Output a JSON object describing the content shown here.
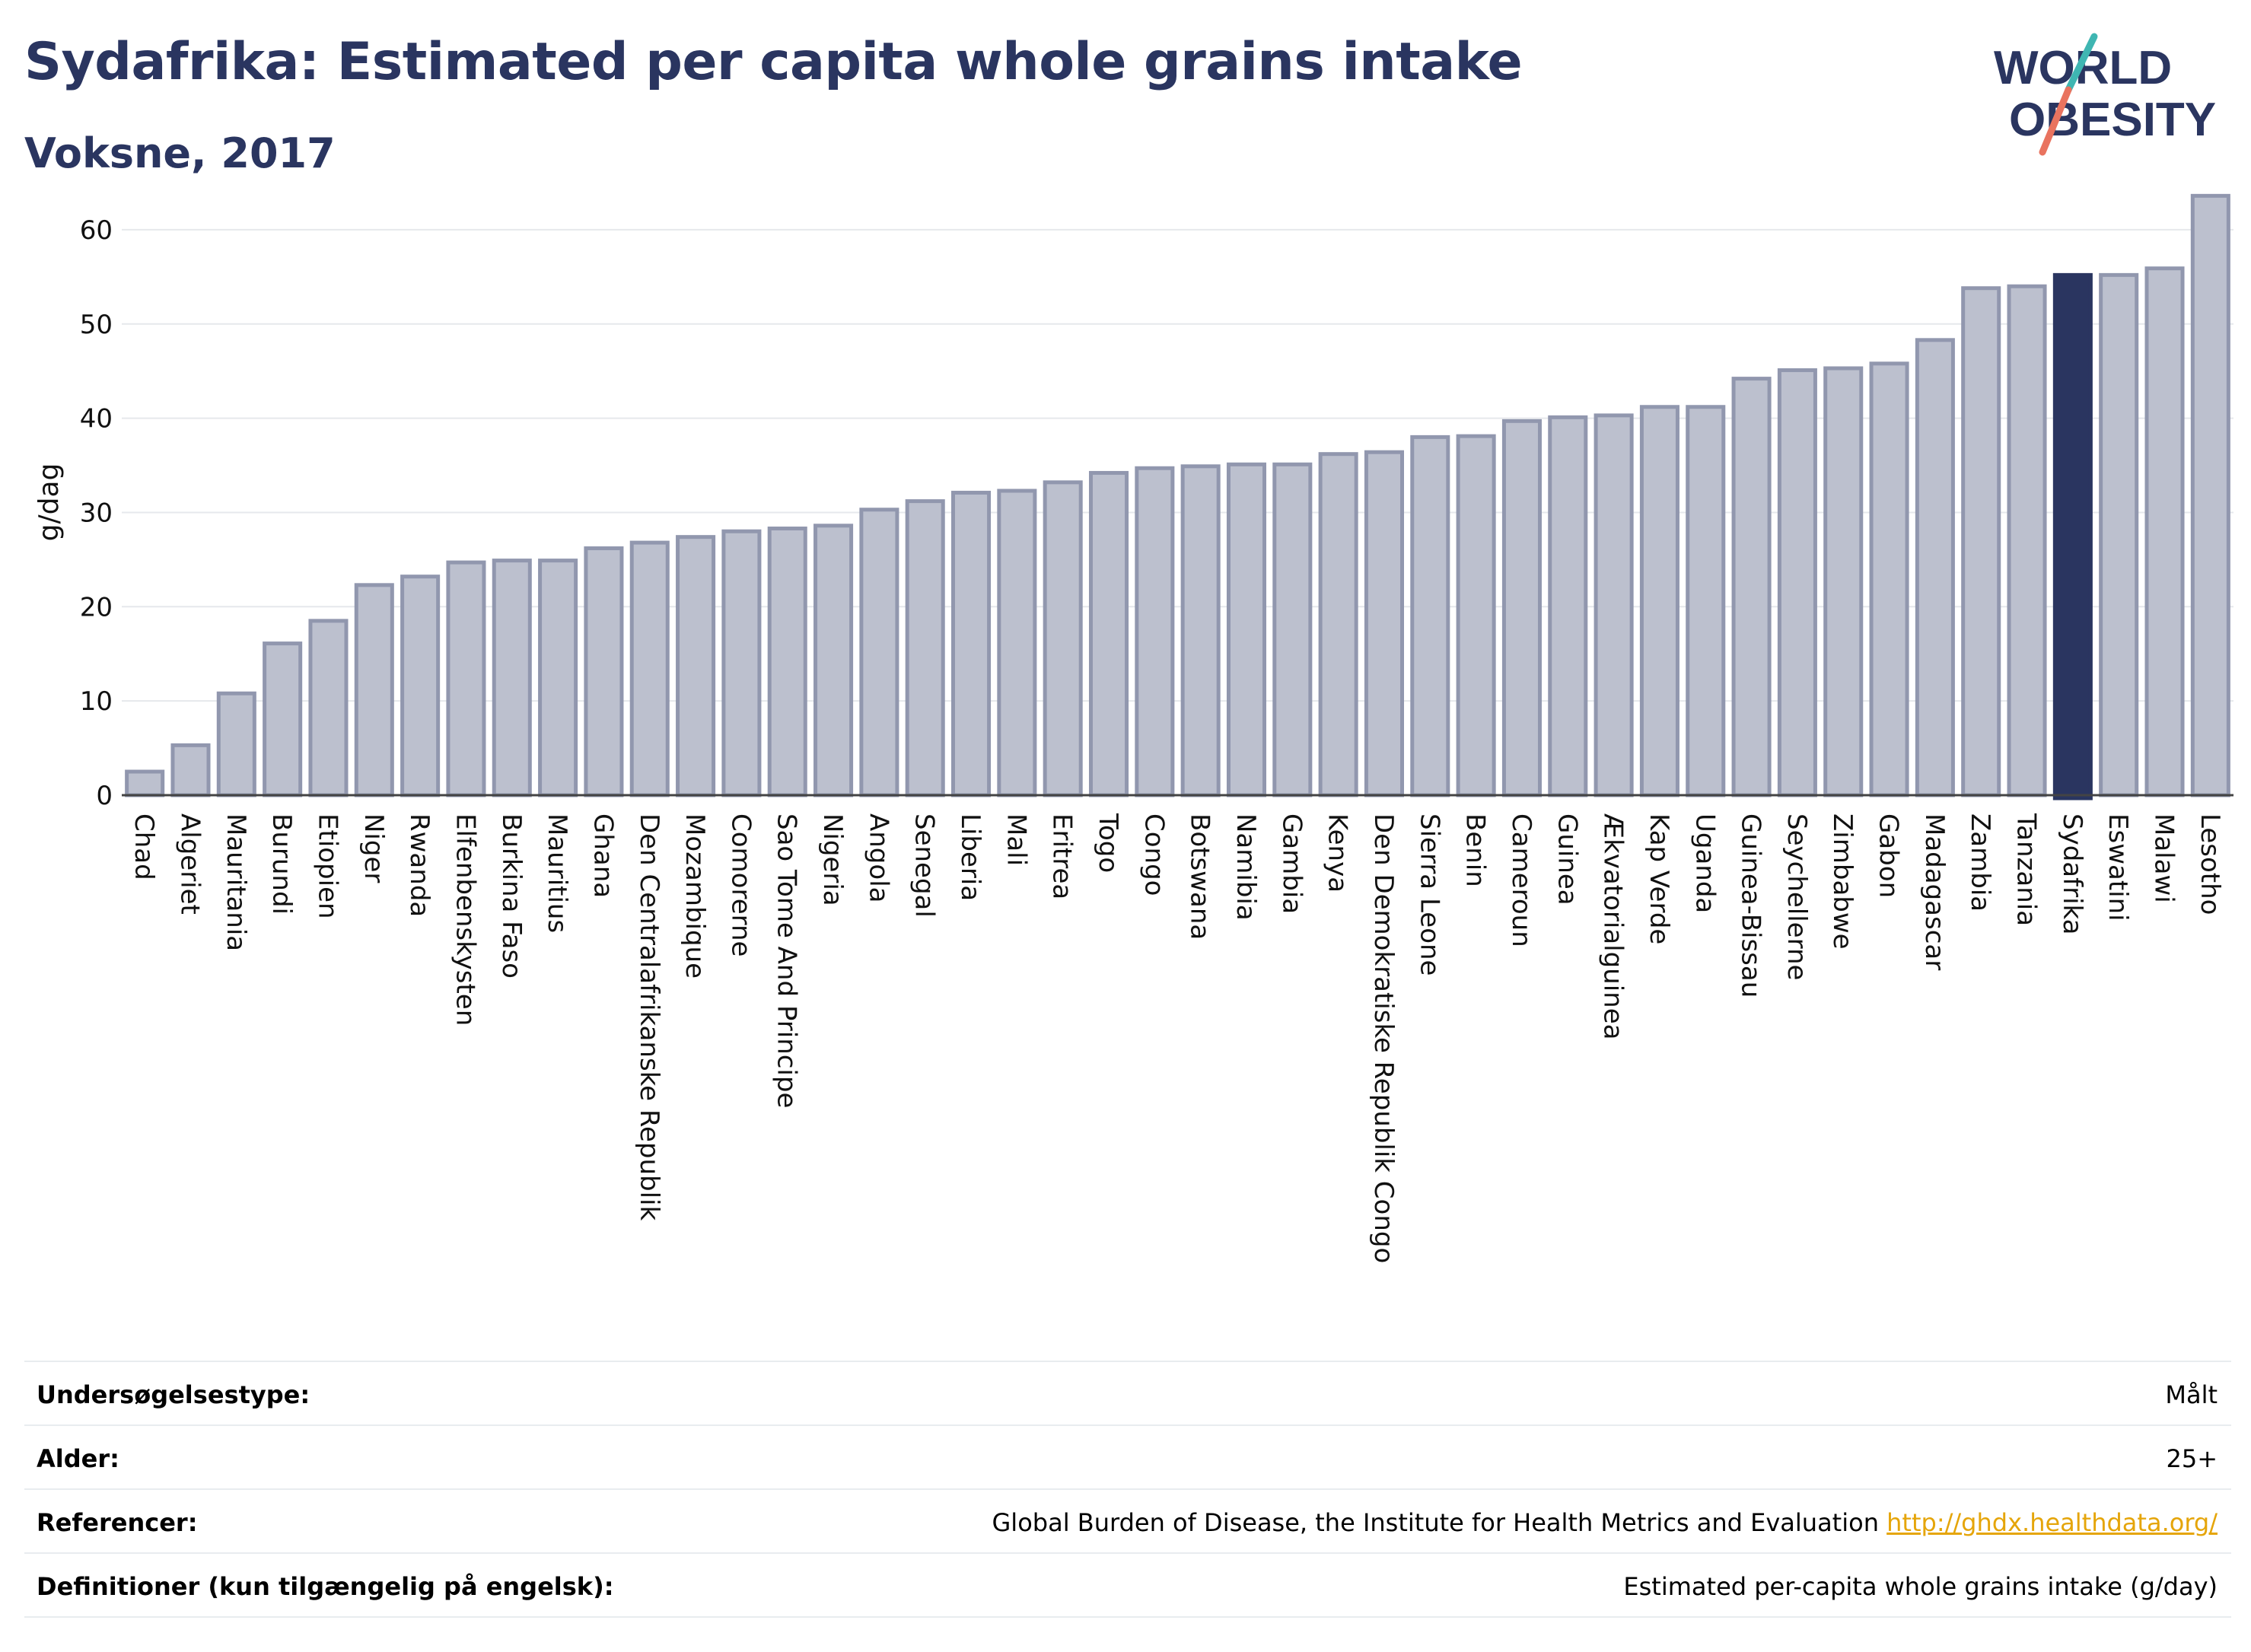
{
  "header": {
    "title": "Sydafrika: Estimated per capita whole grains intake",
    "subtitle": "Voksne, 2017"
  },
  "logo": {
    "line1": "WORLD",
    "line2": "OBESITY",
    "colors": {
      "text": "#2a3560",
      "teal": "#3fb6b2",
      "coral": "#e9735f"
    }
  },
  "chart_data": {
    "type": "bar",
    "ylabel": "g/dag",
    "xlabel": "",
    "ylim": [
      0,
      65
    ],
    "yticks": [
      0,
      10,
      20,
      30,
      40,
      50,
      60
    ],
    "grid": true,
    "highlight_category": "Sydafrika",
    "colors": {
      "bar": "#bcc0ce",
      "bar_border": "#9197ae",
      "highlight": "#2a3560",
      "grid": "#e6e8ec"
    },
    "categories": [
      "Chad",
      "Algeriet",
      "Mauritania",
      "Burundi",
      "Etiopien",
      "Niger",
      "Rwanda",
      "Elfenbenskysten",
      "Burkina Faso",
      "Mauritius",
      "Ghana",
      "Den Centralafrikanske Republik",
      "Mozambique",
      "Comorerne",
      "Sao Tome And Principe",
      "Nigeria",
      "Angola",
      "Senegal",
      "Liberia",
      "Mali",
      "Eritrea",
      "Togo",
      "Congo",
      "Botswana",
      "Namibia",
      "Gambia",
      "Kenya",
      "Den Demokratiske Republik Congo",
      "Sierra Leone",
      "Benin",
      "Cameroun",
      "Guinea",
      "Ækvatorialguinea",
      "Kap Verde",
      "Uganda",
      "Guinea-Bissau",
      "Seychellerne",
      "Zimbabwe",
      "Gabon",
      "Madagascar",
      "Zambia",
      "Tanzania",
      "Sydafrika",
      "Eswatini",
      "Malawi",
      "Lesotho"
    ],
    "values": [
      2.5,
      5.3,
      10.8,
      16.1,
      18.5,
      22.3,
      23.2,
      24.7,
      24.9,
      24.9,
      26.2,
      26.8,
      27.4,
      28.0,
      28.3,
      28.6,
      30.3,
      31.2,
      32.1,
      32.3,
      33.2,
      34.2,
      34.7,
      34.9,
      35.1,
      35.1,
      36.2,
      36.4,
      38.0,
      38.1,
      39.7,
      40.1,
      40.3,
      41.2,
      41.2,
      44.2,
      45.1,
      45.3,
      45.8,
      48.3,
      53.8,
      54.0,
      55.2,
      55.2,
      55.9,
      63.6
    ]
  },
  "info": {
    "rows": [
      {
        "label": "Undersøgelsestype:",
        "value": "Målt"
      },
      {
        "label": "Alder:",
        "value": "25+"
      },
      {
        "label": "Referencer:",
        "value": "Global Burden of Disease, the Institute for Health Metrics and Evaluation",
        "link": "http://ghdx.healthdata.org/"
      },
      {
        "label": "Definitioner (kun tilgængelig på engelsk):",
        "value": "Estimated per-capita whole grains intake (g/day)"
      }
    ]
  }
}
